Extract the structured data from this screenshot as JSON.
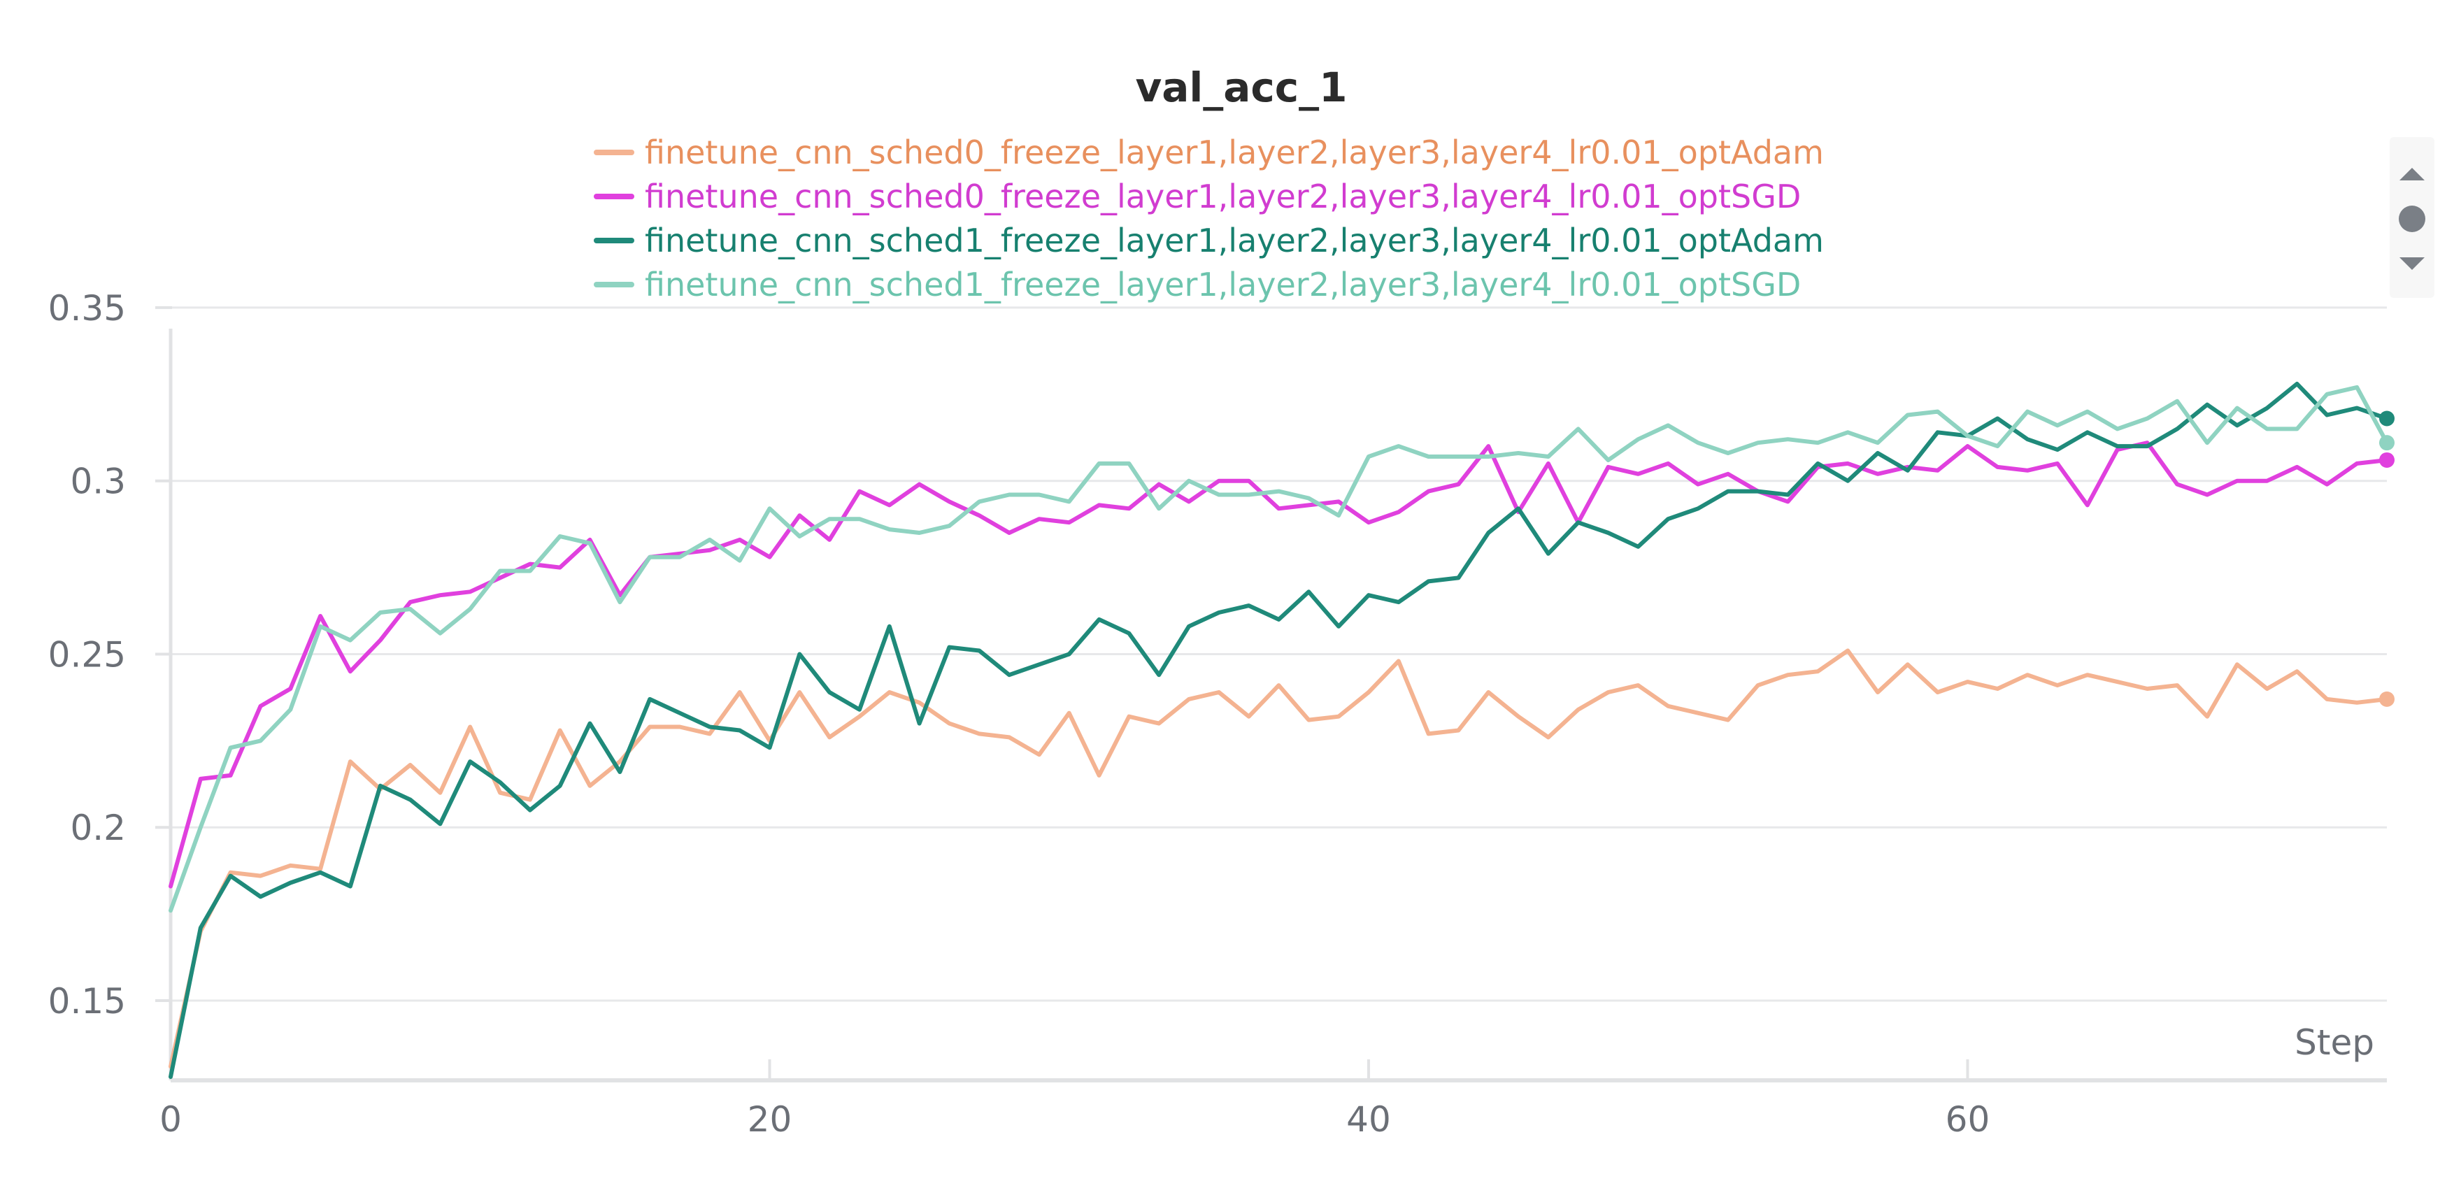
{
  "chart_data": {
    "type": "line",
    "title": "val_acc_1",
    "xlabel": "Step",
    "ylabel": "",
    "xlim": [
      0,
      74
    ],
    "ylim": [
      0.127,
      0.352
    ],
    "yticks": [
      0.15,
      0.2,
      0.25,
      0.3,
      0.35
    ],
    "ytick_labels": [
      "0.15",
      "0.2",
      "0.25",
      "0.3",
      "0.35"
    ],
    "xticks": [
      0,
      20,
      40,
      60
    ],
    "xtick_labels": [
      "0",
      "20",
      "40",
      "60"
    ],
    "grid": "horizontal",
    "legend_position": "top-center",
    "x": [
      0,
      1,
      2,
      3,
      4,
      5,
      6,
      7,
      8,
      9,
      10,
      11,
      12,
      13,
      14,
      15,
      16,
      17,
      18,
      19,
      20,
      21,
      22,
      23,
      24,
      25,
      26,
      27,
      28,
      29,
      30,
      31,
      32,
      33,
      34,
      35,
      36,
      37,
      38,
      39,
      40,
      41,
      42,
      43,
      44,
      45,
      46,
      47,
      48,
      49,
      50,
      51,
      52,
      53,
      54,
      55,
      56,
      57,
      58,
      59,
      60,
      61,
      62,
      63,
      64,
      65,
      66,
      67,
      68,
      69,
      70,
      71,
      72,
      73,
      74
    ],
    "series": [
      {
        "name": "finetune_cnn_sched0_freeze_layer1,layer2,layer3,layer4_lr0.01_optAdam",
        "color": "#f4b391",
        "label_color": "#e8905e",
        "values": [
          0.131,
          0.17,
          0.187,
          0.186,
          0.189,
          0.188,
          0.219,
          0.211,
          0.218,
          0.21,
          0.229,
          0.21,
          0.208,
          0.228,
          0.212,
          0.219,
          0.229,
          0.229,
          0.227,
          0.239,
          0.225,
          0.239,
          0.226,
          0.232,
          0.239,
          0.236,
          0.23,
          0.227,
          0.226,
          0.221,
          0.233,
          0.215,
          0.232,
          0.23,
          0.237,
          0.239,
          0.232,
          0.241,
          0.231,
          0.232,
          0.239,
          0.248,
          0.227,
          0.228,
          0.239,
          0.232,
          0.226,
          0.234,
          0.239,
          0.241,
          0.235,
          0.233,
          0.231,
          0.241,
          0.244,
          0.245,
          0.251,
          0.239,
          0.247,
          0.239,
          0.242,
          0.24,
          0.244,
          0.241,
          0.244,
          0.242,
          0.24,
          0.241,
          0.232,
          0.247,
          0.24,
          0.245,
          0.237,
          0.236,
          0.237
        ]
      },
      {
        "name": "finetune_cnn_sched0_freeze_layer1,layer2,layer3,layer4_lr0.01_optSGD",
        "color": "#e040de",
        "label_color": "#d13cd0",
        "values": [
          0.183,
          0.214,
          0.215,
          0.235,
          0.24,
          0.261,
          0.245,
          0.254,
          0.265,
          0.267,
          0.268,
          0.272,
          0.276,
          0.275,
          0.283,
          0.267,
          0.278,
          0.279,
          0.28,
          0.283,
          0.278,
          0.29,
          0.283,
          0.297,
          0.293,
          0.299,
          0.294,
          0.29,
          0.285,
          0.289,
          0.288,
          0.293,
          0.292,
          0.299,
          0.294,
          0.3,
          0.3,
          0.292,
          0.293,
          0.294,
          0.288,
          0.291,
          0.297,
          0.299,
          0.31,
          0.291,
          0.305,
          0.288,
          0.304,
          0.302,
          0.305,
          0.299,
          0.302,
          0.297,
          0.294,
          0.304,
          0.305,
          0.302,
          0.304,
          0.303,
          0.31,
          0.304,
          0.303,
          0.305,
          0.293,
          0.309,
          0.311,
          0.299,
          0.296,
          0.3,
          0.3,
          0.304,
          0.299,
          0.305,
          0.306
        ]
      },
      {
        "name": "finetune_cnn_sched1_freeze_layer1,layer2,layer3,layer4_lr0.01_optAdam",
        "color": "#1f8a7a",
        "label_color": "#17806f",
        "values": [
          0.128,
          0.171,
          0.186,
          0.18,
          0.184,
          0.187,
          0.183,
          0.212,
          0.208,
          0.201,
          0.219,
          0.213,
          0.205,
          0.212,
          0.23,
          0.216,
          0.237,
          0.233,
          0.229,
          0.228,
          0.223,
          0.25,
          0.239,
          0.234,
          0.258,
          0.23,
          0.252,
          0.251,
          0.244,
          0.247,
          0.25,
          0.26,
          0.256,
          0.244,
          0.258,
          0.262,
          0.264,
          0.26,
          0.268,
          0.258,
          0.267,
          0.265,
          0.271,
          0.272,
          0.285,
          0.292,
          0.279,
          0.288,
          0.285,
          0.281,
          0.289,
          0.292,
          0.297,
          0.297,
          0.296,
          0.305,
          0.3,
          0.308,
          0.303,
          0.314,
          0.313,
          0.318,
          0.312,
          0.309,
          0.314,
          0.31,
          0.31,
          0.315,
          0.322,
          0.316,
          0.321,
          0.328,
          0.319,
          0.321,
          0.318
        ]
      },
      {
        "name": "finetune_cnn_sched1_freeze_layer1,layer2,layer3,layer4_lr0.01_optSGD",
        "color": "#8fd3c1",
        "label_color": "#6cc4ad",
        "values": [
          0.176,
          0.2,
          0.223,
          0.225,
          0.234,
          0.258,
          0.254,
          0.262,
          0.263,
          0.256,
          0.263,
          0.274,
          0.274,
          0.284,
          0.282,
          0.265,
          0.278,
          0.278,
          0.283,
          0.277,
          0.292,
          0.284,
          0.289,
          0.289,
          0.286,
          0.285,
          0.287,
          0.294,
          0.296,
          0.296,
          0.294,
          0.305,
          0.305,
          0.292,
          0.3,
          0.296,
          0.296,
          0.297,
          0.295,
          0.29,
          0.307,
          0.31,
          0.307,
          0.307,
          0.307,
          0.308,
          0.307,
          0.315,
          0.306,
          0.312,
          0.316,
          0.311,
          0.308,
          0.311,
          0.312,
          0.311,
          0.314,
          0.311,
          0.319,
          0.32,
          0.313,
          0.31,
          0.32,
          0.316,
          0.32,
          0.315,
          0.318,
          0.323,
          0.311,
          0.321,
          0.315,
          0.315,
          0.325,
          0.327,
          0.311
        ]
      }
    ]
  }
}
